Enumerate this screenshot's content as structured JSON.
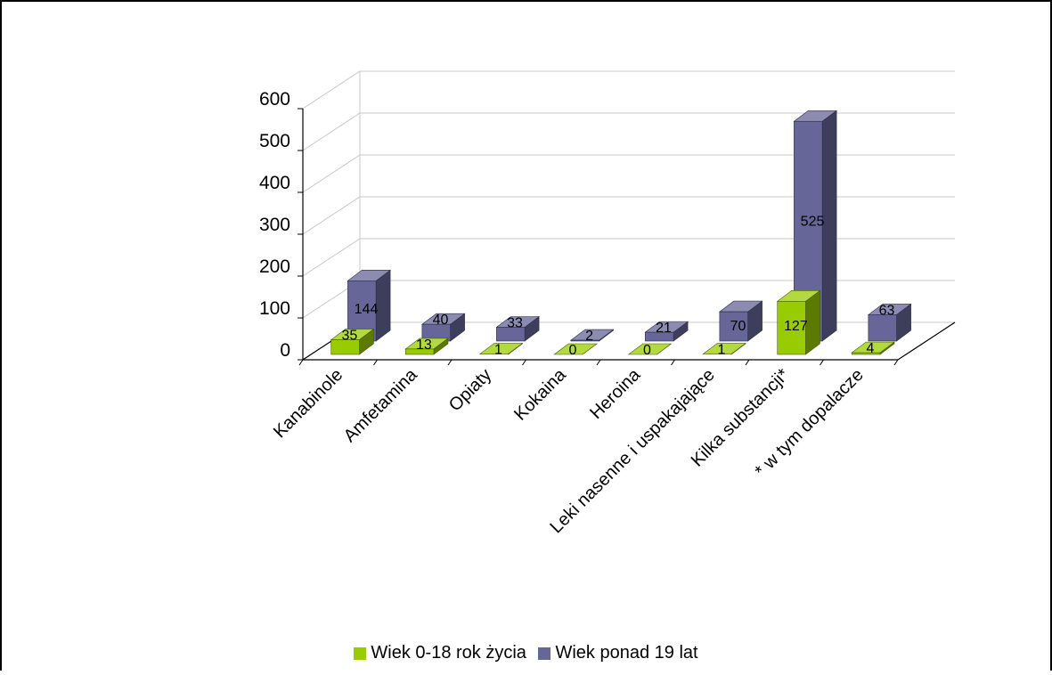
{
  "colors": {
    "series_young": "#99cc00",
    "series_adult": "#666699",
    "grid": "#c8c8c8",
    "frame": "#000000"
  },
  "legend": {
    "items": [
      "Wiek 0-18 rok życia",
      "Wiek ponad 19 lat"
    ]
  },
  "chart_data": {
    "type": "bar",
    "categories": [
      "Kanabinole",
      "Amfetamina",
      "Opiaty",
      "Kokaina",
      "Heroina",
      "Leki nasenne i uspakajające",
      "Kilka substancji*",
      "* w tym dopalacze"
    ],
    "series": [
      {
        "name": "Wiek 0-18 rok życia",
        "values": [
          35,
          13,
          1,
          0,
          0,
          1,
          127,
          4
        ]
      },
      {
        "name": "Wiek ponad 19 lat",
        "values": [
          144,
          40,
          33,
          2,
          21,
          70,
          525,
          63
        ]
      }
    ],
    "y_ticks": [
      "0",
      "100",
      "200",
      "300",
      "400",
      "500",
      "600"
    ],
    "ylim": [
      0,
      600
    ],
    "grid": true,
    "legend_position": "bottom",
    "style": "3d-column"
  }
}
